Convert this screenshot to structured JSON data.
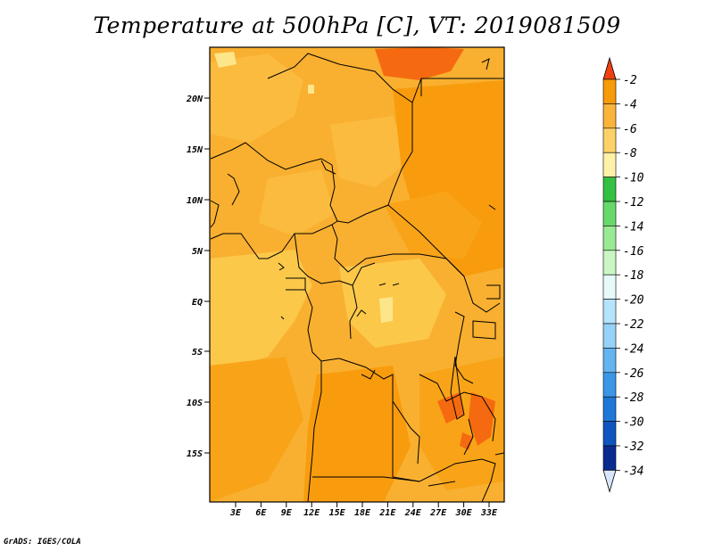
{
  "title": "Temperature at 500hPa [C], VT: 2019081509",
  "credit": "GrADS: IGES/COLA",
  "map": {
    "lat_ticks": [
      "20N",
      "15N",
      "10N",
      "5N",
      "EQ",
      "5S",
      "10S",
      "15S"
    ],
    "lon_ticks": [
      "3E",
      "6E",
      "9E",
      "12E",
      "15E",
      "18E",
      "21E",
      "24E",
      "27E",
      "30E",
      "33E"
    ],
    "colors": {
      "base": "#f9b030",
      "mid": "#f5a020",
      "warm": "#fa9b10",
      "hot": "#f56a10",
      "cool": "#fcc84a",
      "coolest": "#fde58a"
    }
  },
  "colorbar": {
    "labels": [
      "-2",
      "-4",
      "-6",
      "-8",
      "-10",
      "-12",
      "-14",
      "-16",
      "-18",
      "-20",
      "-22",
      "-24",
      "-26",
      "-28",
      "-30",
      "-32",
      "-34"
    ],
    "colors": [
      "#f45510",
      "#f89b0a",
      "#fab43c",
      "#fcd268",
      "#fef2a8",
      "#33c043",
      "#67d86a",
      "#99ea94",
      "#c9f6c3",
      "#e6fbf9",
      "#b4e3fb",
      "#96d2f8",
      "#64b4f0",
      "#3c96e6",
      "#1e78d8",
      "#0e55c0",
      "#0a2a90"
    ],
    "top_arrow_color": "#f04010",
    "bottom_arrow_color": "#d8e6fb"
  }
}
